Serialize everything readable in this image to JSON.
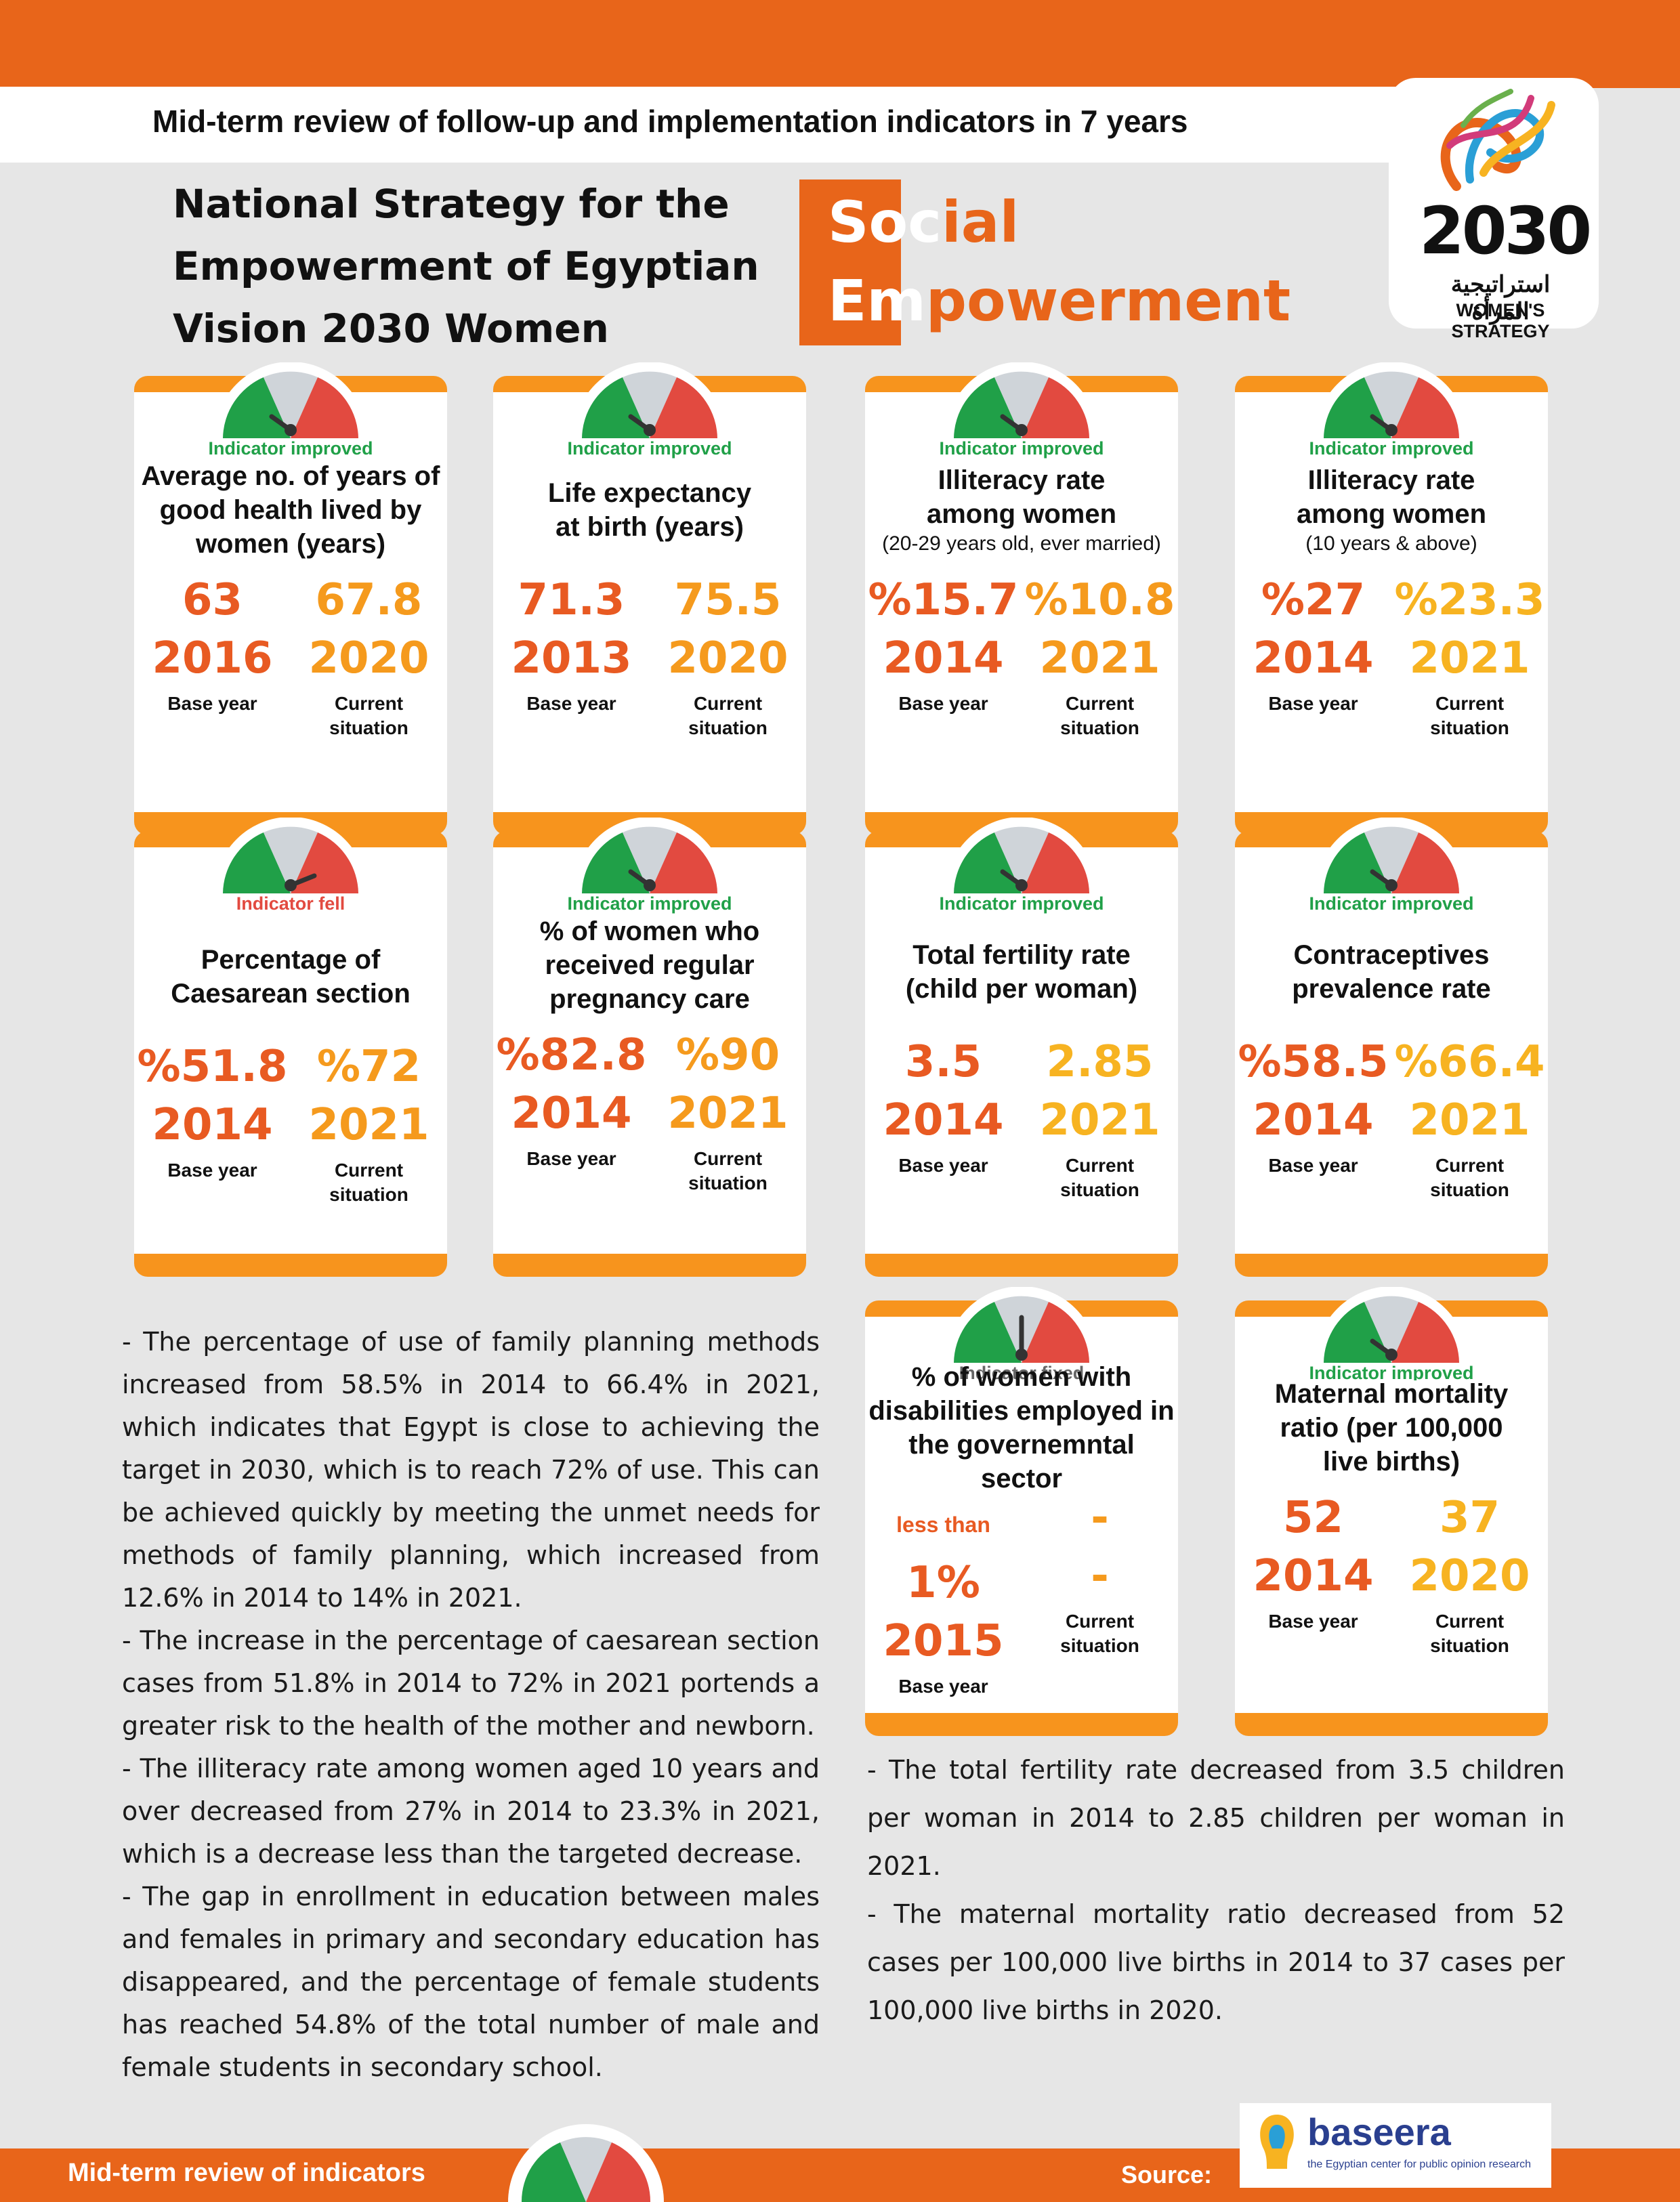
{
  "header": {
    "subtitle": "Mid-term review of follow-up and implementation indicators in 7 years",
    "title_lines": [
      "National Strategy for the",
      "Empowerment of Egyptian",
      "Vision 2030 Women"
    ],
    "section_line1_a": "Soc",
    "section_line1_b": "ial",
    "section_line2_a": "Em",
    "section_line2_b": "powerment"
  },
  "logo": {
    "number": "2030",
    "arabic": "استراتيجية المرأة",
    "english": "WOMEN'S STRATEGY"
  },
  "captions": {
    "base": "Base year",
    "current_line1": "Current",
    "current_line2": "situation"
  },
  "cards": [
    {
      "status": "Indicator improved",
      "label": [
        "Average no. of years of",
        "good health lived by",
        "women (years)"
      ],
      "sub": "",
      "base_value": "63",
      "base_year": "2016",
      "current_value": "67.8",
      "current_year": "2020"
    },
    {
      "status": "Indicator improved",
      "label": [
        "Life expectancy",
        "at birth (years)"
      ],
      "sub": "",
      "base_value": "71.3",
      "base_year": "2013",
      "current_value": "75.5",
      "current_year": "2020"
    },
    {
      "status": "Indicator improved",
      "label": [
        "Illiteracy rate",
        "among women"
      ],
      "sub": "(20-29 years old, ever married)",
      "base_value": "%15.7",
      "base_year": "2014",
      "current_value": "%10.8",
      "current_year": "2021"
    },
    {
      "status": "Indicator improved",
      "label": [
        "Illiteracy rate",
        "among women"
      ],
      "sub": "(10 years & above)",
      "base_value": "%27",
      "base_year": "2014",
      "current_value": "%23.3",
      "current_year": "2021"
    },
    {
      "status": "Indicator fell",
      "label": [
        "Percentage of",
        "Caesarean section"
      ],
      "sub": "",
      "base_value": "%51.8",
      "base_year": "2014",
      "current_value": "%72",
      "current_year": "2021"
    },
    {
      "status": "Indicator improved",
      "label": [
        "% of women who",
        "received regular",
        "pregnancy care"
      ],
      "sub": "",
      "base_value": "%82.8",
      "base_year": "2014",
      "current_value": "%90",
      "current_year": "2021"
    },
    {
      "status": "Indicator improved",
      "label": [
        "Total fertility rate",
        "(child per woman)"
      ],
      "sub": "",
      "base_value": "3.5",
      "base_year": "2014",
      "current_value": "2.85",
      "current_year": "2021"
    },
    {
      "status": "Indicator improved",
      "label": [
        "Contraceptives",
        "prevalence rate"
      ],
      "sub": "",
      "base_value": "%58.5",
      "base_year": "2014",
      "current_value": "%66.4",
      "current_year": "2021"
    },
    {
      "status": "Indicator fixed",
      "label": [
        "% of women with",
        "disabilities employed in",
        "the governemntal sector"
      ],
      "sub": "",
      "base_prefix": "less than ",
      "base_value": "1%",
      "base_year": "2015",
      "current_value": "-",
      "current_year": "-"
    },
    {
      "status": "Indicator improved",
      "label": [
        "Maternal mortality",
        "ratio (per 100,000",
        "live births)"
      ],
      "sub": "",
      "base_value": "52",
      "base_year": "2014",
      "current_value": "37",
      "current_year": "2020"
    }
  ],
  "left_text": [
    "- The percentage of use of family planning methods increased from 58.5% in 2014 to 66.4% in 2021, which indicates that Egypt is close to achieving the target in 2030, which is to reach 72% of use. This can be achieved quickly by meeting the unmet needs for methods of family planning, which increased from 12.6% in 2014 to 14% in 2021.",
    "- The increase in the percentage of caesarean section cases from 51.8% in 2014 to 72% in 2021 portends a greater risk to the health of the mother and newborn.",
    "- The illiteracy rate among women aged 10 years and over decreased from 27% in 2014 to 23.3% in 2021, which is a decrease less than the targeted decrease.",
    "- The gap in enrollment in education between males and females in primary and secondary education has disappeared, and the percentage of female students has reached 54.8% of the total number of male and female students in secondary school."
  ],
  "right_text": [
    "- The total fertility rate decreased from 3.5 children per woman in 2014 to 2.85 children per woman in 2021.",
    "- The maternal mortality ratio decreased from 52 cases per 100,000 live births in 2014 to 37 cases per 100,000 live births in 2020."
  ],
  "footer": {
    "left": "Mid-term review of indicators",
    "source": "Source:",
    "brand": "baseera",
    "brand_tag": "the Egyptian center for public opinion research"
  },
  "colors": {
    "orange": "#e8651a",
    "amber": "#f7941d",
    "green": "#20a048",
    "red": "#e24a40",
    "gray": "#cfd4d9"
  }
}
